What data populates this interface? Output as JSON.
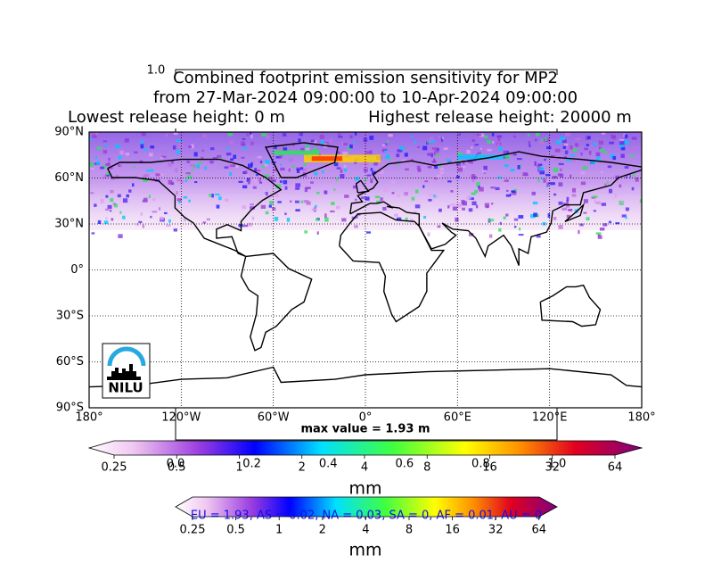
{
  "header": {
    "corner_label": "1.0",
    "title_lines": [
      "Combined footprint emission sensitivity for MP2",
      "from 27-Mar-2024 09:00:00 to 10-Apr-2024 09:00:00"
    ],
    "release_low": "Lowest release height: 0 m",
    "release_high": "Highest release height: 20000 m"
  },
  "map": {
    "lat_labels": [
      "90°N",
      "60°N",
      "30°N",
      "0°",
      "30°S",
      "60°S",
      "90°S"
    ],
    "lon_labels": [
      "180°",
      "120°W",
      "60°W",
      "0°",
      "60°E",
      "120°E",
      "180°"
    ],
    "logo": "NILU",
    "max_value": "max value = 1.93 m"
  },
  "colorbar_main": {
    "ticks": [
      "0.25",
      "0.5",
      "1",
      "2",
      "4",
      "8",
      "16",
      "32",
      "64"
    ],
    "unit": "mm"
  },
  "overlay_ticks": [
    "0.0",
    "0.2",
    "0.4",
    "0.6",
    "0.8",
    "1.0"
  ],
  "colorbar_secondary": {
    "ticks": [
      "0.25",
      "0.5",
      "1",
      "2",
      "4",
      "8",
      "16",
      "32",
      "64"
    ],
    "unit": "mm"
  },
  "region_summary": "EU = 1.93,  AS = 0.02,  NA = 0.03,  SA = 0,  AF = 0.01,  AU = 0"
}
